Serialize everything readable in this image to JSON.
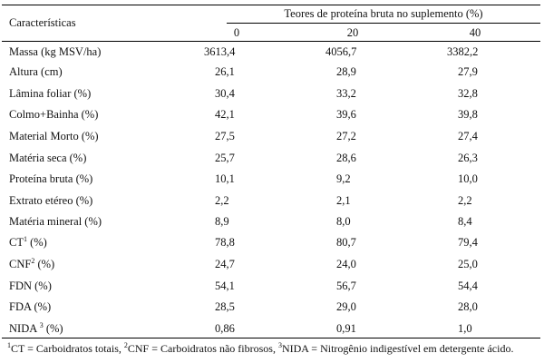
{
  "table": {
    "header_characteristics": "Características",
    "header_group": "Teores de proteína bruta no suplemento (%)",
    "columns": [
      "0",
      "20",
      "40"
    ],
    "rows": [
      {
        "label": "Massa (kg MSV/ha)",
        "sup": "",
        "suffix": "",
        "values": [
          "3613,4",
          "4056,7",
          "3382,2"
        ]
      },
      {
        "label": "Altura (cm)",
        "sup": "",
        "suffix": "",
        "values": [
          "26,1",
          "28,9",
          "27,9"
        ]
      },
      {
        "label": "Lâmina foliar (%)",
        "sup": "",
        "suffix": "",
        "values": [
          "30,4",
          "33,2",
          "32,8"
        ]
      },
      {
        "label": "Colmo+Bainha (%)",
        "sup": "",
        "suffix": "",
        "values": [
          "42,1",
          "39,6",
          "39,8"
        ]
      },
      {
        "label": "Material Morto (%)",
        "sup": "",
        "suffix": "",
        "values": [
          "27,5",
          "27,2",
          "27,4"
        ]
      },
      {
        "label": "Matéria seca (%)",
        "sup": "",
        "suffix": "",
        "values": [
          "25,7",
          "28,6",
          "26,3"
        ]
      },
      {
        "label": "Proteína bruta (%)",
        "sup": "",
        "suffix": "",
        "values": [
          "10,1",
          "9,2",
          "10,0"
        ]
      },
      {
        "label": "Extrato etéreo (%)",
        "sup": "",
        "suffix": "",
        "values": [
          "2,2",
          "2,1",
          "2,2"
        ]
      },
      {
        "label": "Matéria mineral (%)",
        "sup": "",
        "suffix": "",
        "values": [
          "8,9",
          "8,0",
          "8,4"
        ]
      },
      {
        "label": "CT",
        "sup": "1",
        "suffix": " (%)",
        "values": [
          "78,8",
          "80,7",
          "79,4"
        ]
      },
      {
        "label": "CNF",
        "sup": "2",
        "suffix": " (%)",
        "values": [
          "24,7",
          "24,0",
          "25,0"
        ]
      },
      {
        "label": "FDN (%)",
        "sup": "",
        "suffix": "",
        "values": [
          "54,1",
          "56,7",
          "54,4"
        ]
      },
      {
        "label": "FDA (%)",
        "sup": "",
        "suffix": "",
        "values": [
          "28,5",
          "29,0",
          "28,0"
        ]
      },
      {
        "label": "NIDA ",
        "sup": "3",
        "suffix": " (%)",
        "values": [
          "0,86",
          "0,91",
          "1,0"
        ]
      }
    ]
  },
  "footnote": {
    "sup1": "1",
    "part1": "CT = Carboidratos totais, ",
    "sup2": "2",
    "part2": "CNF = Carboidratos não fibrosos, ",
    "sup3": "3",
    "part3": "NIDA = Nitrogênio indigestível em detergente ácido."
  }
}
